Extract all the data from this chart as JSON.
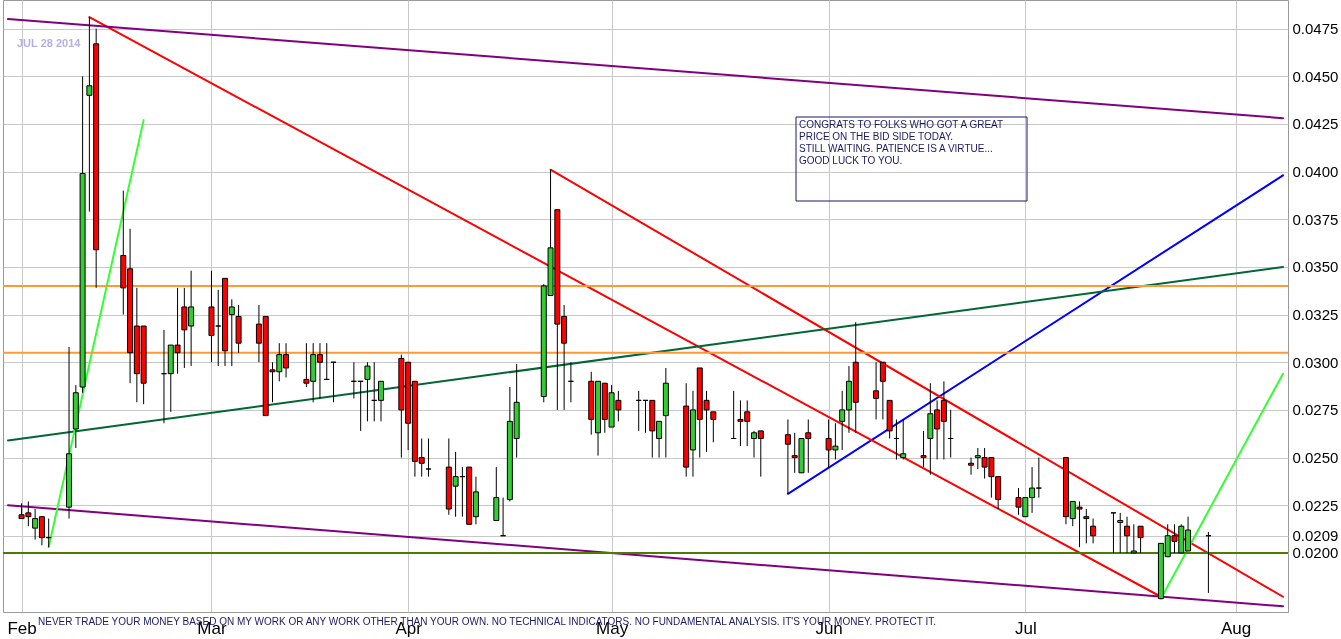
{
  "chart_data": {
    "type": "candlestick",
    "subtitle": "JUL 28 2014",
    "x": [
      "2014-02-03",
      "2014-02-04",
      "2014-02-05",
      "2014-02-06",
      "2014-02-07",
      "2014-02-10",
      "2014-02-11",
      "2014-02-12",
      "2014-02-13",
      "2014-02-14",
      "2014-02-18",
      "2014-02-19",
      "2014-02-20",
      "2014-02-21",
      "2014-02-24",
      "2014-02-25",
      "2014-02-26",
      "2014-02-27",
      "2014-02-28",
      "2014-03-03",
      "2014-03-04",
      "2014-03-05",
      "2014-03-06",
      "2014-03-07",
      "2014-03-10",
      "2014-03-11",
      "2014-03-12",
      "2014-03-13",
      "2014-03-14",
      "2014-03-17",
      "2014-03-18",
      "2014-03-19",
      "2014-03-20",
      "2014-03-21",
      "2014-03-24",
      "2014-03-25",
      "2014-03-26",
      "2014-03-27",
      "2014-03-28",
      "2014-03-31",
      "2014-04-01",
      "2014-04-02",
      "2014-04-03",
      "2014-04-04",
      "2014-04-07",
      "2014-04-08",
      "2014-04-09",
      "2014-04-10",
      "2014-04-11",
      "2014-04-14",
      "2014-04-15",
      "2014-04-16",
      "2014-04-17",
      "2014-04-21",
      "2014-04-22",
      "2014-04-23",
      "2014-04-24",
      "2014-04-25",
      "2014-04-28",
      "2014-04-29",
      "2014-04-30",
      "2014-05-01",
      "2014-05-02",
      "2014-05-05",
      "2014-05-06",
      "2014-05-07",
      "2014-05-08",
      "2014-05-09",
      "2014-05-12",
      "2014-05-13",
      "2014-05-14",
      "2014-05-15",
      "2014-05-16",
      "2014-05-19",
      "2014-05-20",
      "2014-05-21",
      "2014-05-22",
      "2014-05-23",
      "2014-05-27",
      "2014-05-28",
      "2014-05-29",
      "2014-05-30",
      "2014-06-02",
      "2014-06-03",
      "2014-06-04",
      "2014-06-05",
      "2014-06-06",
      "2014-06-09",
      "2014-06-10",
      "2014-06-11",
      "2014-06-12",
      "2014-06-13",
      "2014-06-16",
      "2014-06-17",
      "2014-06-18",
      "2014-06-19",
      "2014-06-20",
      "2014-06-23",
      "2014-06-24",
      "2014-06-25",
      "2014-06-26",
      "2014-06-27",
      "2014-06-30",
      "2014-07-01",
      "2014-07-02",
      "2014-07-03",
      "2014-07-07",
      "2014-07-08",
      "2014-07-09",
      "2014-07-10",
      "2014-07-11",
      "2014-07-14",
      "2014-07-15",
      "2014-07-16",
      "2014-07-17",
      "2014-07-18",
      "2014-07-21",
      "2014-07-22",
      "2014-07-23",
      "2014-07-24",
      "2014-07-25",
      "2014-07-28"
    ],
    "ohlc": [
      [
        0.022,
        0.0226,
        0.0218,
        0.0218
      ],
      [
        0.0221,
        0.0227,
        0.0214,
        0.0219
      ],
      [
        0.0213,
        0.0223,
        0.0207,
        0.0218
      ],
      [
        0.0219,
        0.0219,
        0.0204,
        0.0208
      ],
      [
        0.0208,
        0.0218,
        0.0203,
        0.0208
      ],
      [
        0.0224,
        0.0308,
        0.0218,
        0.0252
      ],
      [
        0.0265,
        0.0288,
        0.0255,
        0.0284
      ],
      [
        0.0287,
        0.045,
        0.0284,
        0.0399
      ],
      [
        0.044,
        0.0481,
        0.0379,
        0.0445
      ],
      [
        0.0467,
        0.0475,
        0.0339,
        0.0359
      ],
      [
        0.0356,
        0.039,
        0.0325,
        0.0339
      ],
      [
        0.0349,
        0.037,
        0.0289,
        0.0305
      ],
      [
        0.0319,
        0.0339,
        0.0279,
        0.0294
      ],
      [
        0.0319,
        0.0319,
        0.0278,
        0.0289
      ],
      [
        0.0294,
        0.0317,
        0.0268,
        0.0294
      ],
      [
        0.0294,
        0.0309,
        0.0274,
        0.0309
      ],
      [
        0.0309,
        0.0339,
        0.0294,
        0.0305
      ],
      [
        0.0329,
        0.0339,
        0.0297,
        0.0317
      ],
      [
        0.0319,
        0.0348,
        0.0298,
        0.0329
      ],
      [
        0.0329,
        0.0348,
        0.03,
        0.0314
      ],
      [
        0.0319,
        0.0338,
        0.0298,
        0.0319
      ],
      [
        0.0344,
        0.0344,
        0.0298,
        0.0306
      ],
      [
        0.0325,
        0.0333,
        0.0298,
        0.0329
      ],
      [
        0.0324,
        0.033,
        0.0305,
        0.031
      ],
      [
        0.032,
        0.033,
        0.03,
        0.031
      ],
      [
        0.0324,
        0.0324,
        0.0272,
        0.0272
      ],
      [
        0.0296,
        0.03,
        0.0279,
        0.0295
      ],
      [
        0.0295,
        0.031,
        0.029,
        0.0304
      ],
      [
        0.0304,
        0.031,
        0.0292,
        0.0297
      ],
      [
        0.0291,
        0.031,
        0.0287,
        0.0289
      ],
      [
        0.029,
        0.031,
        0.0279,
        0.0304
      ],
      [
        0.0304,
        0.031,
        0.0281,
        0.03
      ],
      [
        0.0291,
        0.031,
        0.0291,
        0.0291
      ],
      [
        0.03,
        0.03,
        0.0279,
        0.03
      ],
      [
        0.029,
        0.03,
        0.0281,
        0.029
      ],
      [
        0.029,
        0.029,
        0.0264,
        0.029
      ],
      [
        0.0291,
        0.03,
        0.0269,
        0.0298
      ],
      [
        0.028,
        0.03,
        0.0269,
        0.028
      ],
      [
        0.028,
        0.029,
        0.0269,
        0.029
      ],
      [
        0.0302,
        0.0304,
        0.025,
        0.0275
      ],
      [
        0.03,
        0.03,
        0.0254,
        0.0268
      ],
      [
        0.029,
        0.029,
        0.024,
        0.0248
      ],
      [
        0.025,
        0.026,
        0.024,
        0.0247
      ],
      [
        0.0244,
        0.026,
        0.024,
        0.0244
      ],
      [
        0.0245,
        0.026,
        0.022,
        0.0223
      ],
      [
        0.0235,
        0.0253,
        0.0219,
        0.024
      ],
      [
        0.024,
        0.0245,
        0.0219,
        0.024
      ],
      [
        0.0245,
        0.0245,
        0.0215,
        0.0215
      ],
      [
        0.0219,
        0.024,
        0.0215,
        0.0232
      ],
      [
        0.0217,
        0.0245,
        0.0217,
        0.0229
      ],
      [
        0.0209,
        0.0229,
        0.0209,
        0.0209
      ],
      [
        0.0228,
        0.0287,
        0.0227,
        0.0269
      ],
      [
        0.026,
        0.0299,
        0.025,
        0.0279
      ],
      [
        0.0282,
        0.0341,
        0.0279,
        0.034
      ],
      [
        0.0335,
        0.0401,
        0.0335,
        0.036
      ],
      [
        0.038,
        0.038,
        0.0275,
        0.032
      ],
      [
        0.0324,
        0.033,
        0.0275,
        0.031
      ],
      [
        0.029,
        0.03,
        0.0279,
        0.029
      ],
      [
        0.029,
        0.0295,
        0.0262,
        0.027
      ],
      [
        0.0263,
        0.029,
        0.0251,
        0.029
      ],
      [
        0.0289,
        0.0289,
        0.0263,
        0.027
      ],
      [
        0.0266,
        0.0288,
        0.0266,
        0.0284
      ],
      [
        0.028,
        0.0285,
        0.0269,
        0.0275
      ],
      [
        0.028,
        0.0285,
        0.0264,
        0.028
      ],
      [
        0.028,
        0.028,
        0.0263,
        0.028
      ],
      [
        0.028,
        0.028,
        0.025,
        0.0264
      ],
      [
        0.026,
        0.0269,
        0.025,
        0.0269
      ],
      [
        0.0272,
        0.0297,
        0.025,
        0.0289
      ],
      [
        0.0277,
        0.0289,
        0.024,
        0.0245
      ],
      [
        0.0254,
        0.0285,
        0.024,
        0.0275
      ],
      [
        0.0297,
        0.0297,
        0.025,
        0.027
      ],
      [
        0.028,
        0.0285,
        0.0253,
        0.0275
      ],
      [
        0.0274,
        0.0274,
        0.0258,
        0.027
      ],
      [
        0.026,
        0.0285,
        0.026,
        0.026
      ],
      [
        0.027,
        0.028,
        0.0256,
        0.0269
      ],
      [
        0.0274,
        0.028,
        0.0256,
        0.0269
      ],
      [
        0.026,
        0.0264,
        0.025,
        0.0263
      ],
      [
        0.0264,
        0.0264,
        0.024,
        0.026
      ],
      [
        0.0262,
        0.027,
        0.0231,
        0.0257
      ],
      [
        0.0251,
        0.0263,
        0.0242,
        0.025
      ],
      [
        0.0242,
        0.026,
        0.0242,
        0.026
      ],
      [
        0.0263,
        0.027,
        0.0242,
        0.026
      ],
      [
        0.026,
        0.027,
        0.0245,
        0.0254
      ],
      [
        0.0254,
        0.0268,
        0.0249,
        0.0256
      ],
      [
        0.0269,
        0.0285,
        0.0254,
        0.0275
      ],
      [
        0.0275,
        0.0298,
        0.0263,
        0.029
      ],
      [
        0.03,
        0.0321,
        0.0263,
        0.0279
      ],
      [
        0.0285,
        0.03,
        0.027,
        0.0281
      ],
      [
        0.03,
        0.03,
        0.027,
        0.029
      ],
      [
        0.028,
        0.028,
        0.026,
        0.0264
      ],
      [
        0.026,
        0.027,
        0.0249,
        0.026
      ],
      [
        0.025,
        0.027,
        0.0249,
        0.0252
      ],
      [
        0.0251,
        0.0264,
        0.0245,
        0.025
      ],
      [
        0.026,
        0.0289,
        0.0241,
        0.0273
      ],
      [
        0.0275,
        0.028,
        0.0249,
        0.0265
      ],
      [
        0.028,
        0.029,
        0.0249,
        0.0269
      ],
      [
        0.026,
        0.0275,
        0.025,
        0.026
      ],
      [
        0.0247,
        0.025,
        0.0241,
        0.0246
      ],
      [
        0.025,
        0.0255,
        0.0244,
        0.0251
      ],
      [
        0.025,
        0.0255,
        0.0239,
        0.0245
      ],
      [
        0.025,
        0.025,
        0.0229,
        0.024
      ],
      [
        0.024,
        0.024,
        0.0223,
        0.0228
      ],
      [
        0.0229,
        0.0234,
        0.022,
        0.0224
      ],
      [
        0.0219,
        0.0229,
        0.0219,
        0.0229
      ],
      [
        0.0229,
        0.0245,
        0.0221,
        0.0234
      ],
      [
        0.0234,
        0.025,
        0.0229,
        0.0234
      ],
      [
        0.025,
        0.025,
        0.0215,
        0.0219
      ],
      [
        0.0218,
        0.0227,
        0.0214,
        0.0227
      ],
      [
        0.0224,
        0.0227,
        0.0203,
        0.0223
      ],
      [
        0.0219,
        0.0223,
        0.0205,
        0.0218
      ],
      [
        0.0214,
        0.0218,
        0.0205,
        0.0209
      ],
      [
        0.0221,
        0.0221,
        0.02,
        0.0221
      ],
      [
        0.0216,
        0.0221,
        0.02,
        0.0217
      ],
      [
        0.0214,
        0.0219,
        0.02,
        0.0209
      ],
      [
        0.02,
        0.0215,
        0.02,
        0.0201
      ],
      [
        0.0214,
        0.0214,
        0.02,
        0.0208
      ],
      [
        0.0176,
        0.0205,
        0.0176,
        0.0205
      ],
      [
        0.0198,
        0.0215,
        0.0198,
        0.0209
      ],
      [
        0.0209,
        0.0215,
        0.02,
        0.0206
      ],
      [
        0.02,
        0.0215,
        0.02,
        0.0214
      ],
      [
        0.0201,
        0.0219,
        0.0201,
        0.0212
      ],
      [
        0.0209,
        0.0211,
        0.0179,
        0.0209
      ]
    ],
    "colors": [
      "#ff0000",
      "#ff0000",
      "#33cc33",
      "#ff0000",
      "#000000",
      "#33cc33",
      "#33cc33",
      "#33cc33",
      "#33cc33",
      "#ff0000",
      "#ff0000",
      "#ff0000",
      "#ff0000",
      "#ff0000",
      "#000000",
      "#33cc33",
      "#ff0000",
      "#ff0000",
      "#33cc33",
      "#ff0000",
      "#000000",
      "#ff0000",
      "#33cc33",
      "#ff0000",
      "#ff0000",
      "#ff0000",
      "#ff0000",
      "#33cc33",
      "#ff0000",
      "#ff0000",
      "#33cc33",
      "#ff0000",
      "#000000",
      "#000000",
      "#000000",
      "#000000",
      "#33cc33",
      "#000000",
      "#33cc33",
      "#ff0000",
      "#ff0000",
      "#ff0000",
      "#ff0000",
      "#000000",
      "#ff0000",
      "#33cc33",
      "#000000",
      "#ff0000",
      "#33cc33",
      "#33cc33",
      "#000000",
      "#33cc33",
      "#33cc33",
      "#33cc33",
      "#33cc33",
      "#ff0000",
      "#ff0000",
      "#000000",
      "#ff0000",
      "#33cc33",
      "#ff0000",
      "#33cc33",
      "#ff0000",
      "#000000",
      "#000000",
      "#ff0000",
      "#33cc33",
      "#33cc33",
      "#ff0000",
      "#33cc33",
      "#ff0000",
      "#ff0000",
      "#ff0000",
      "#000000",
      "#ff0000",
      "#ff0000",
      "#33cc33",
      "#ff0000",
      "#ff0000",
      "#ff0000",
      "#33cc33",
      "#ff0000",
      "#ff0000",
      "#33cc33",
      "#33cc33",
      "#33cc33",
      "#ff0000",
      "#ff0000",
      "#ff0000",
      "#ff0000",
      "#000000",
      "#33cc33",
      "#ff0000",
      "#33cc33",
      "#ff0000",
      "#ff0000",
      "#000000",
      "#ff0000",
      "#33cc33",
      "#ff0000",
      "#ff0000",
      "#ff0000",
      "#ff0000",
      "#33cc33",
      "#33cc33",
      "#000000",
      "#ff0000",
      "#33cc33",
      "#ff0000",
      "#ff0000",
      "#ff0000",
      "#000000",
      "#33cc33",
      "#ff0000",
      "#33cc33",
      "#ff0000",
      "#33cc33",
      "#33cc33",
      "#ff0000",
      "#33cc33",
      "#33cc33",
      "#000000"
    ],
    "series": [
      {
        "type": "line",
        "color": "#0000ff",
        "x": [
          "2014-05-27",
          "2014-08-08"
        ],
        "values": [
          0.0231,
          0.0398
        ]
      },
      {
        "type": "line",
        "color": "#ff0000",
        "x": [
          "2014-02-13",
          "2014-07-21"
        ],
        "values": [
          0.0481,
          0.0177
        ]
      },
      {
        "type": "line",
        "color": "#ff0000",
        "x": [
          "2014-04-22",
          "2014-08-08"
        ],
        "values": [
          0.0401,
          0.0177
        ]
      },
      {
        "type": "line",
        "color": "#800080",
        "x": [
          "2014-02-01",
          "2014-08-08"
        ],
        "values": [
          0.048,
          0.0428
        ]
      },
      {
        "type": "line",
        "color": "#800080",
        "x": [
          "2014-02-01",
          "2014-08-08"
        ],
        "values": [
          0.0225,
          0.0172
        ]
      },
      {
        "type": "line",
        "color": "#006633",
        "x": [
          "2014-02-01",
          "2014-08-08"
        ],
        "values": [
          0.0259,
          0.035
        ]
      },
      {
        "type": "line",
        "color": "#33ff33",
        "x": [
          "2014-02-07",
          "2014-02-21"
        ],
        "values": [
          0.0203,
          0.0427
        ]
      },
      {
        "type": "line",
        "color": "#33ff33",
        "x": [
          "2014-07-21",
          "2014-08-08"
        ],
        "values": [
          0.0176,
          0.0294
        ]
      }
    ],
    "ref_lines": [
      {
        "axis": "y",
        "value": 0.034,
        "color": "#ff9933"
      },
      {
        "axis": "y",
        "value": 0.0305,
        "color": "#ff9933"
      },
      {
        "axis": "y",
        "value": 0.02,
        "color": "#4d7a00"
      }
    ],
    "xlim": [
      "2014-02-01",
      "2014-08-08"
    ],
    "xticks": [
      {
        "value": "2014-02-03",
        "label": "Feb"
      },
      {
        "value": "2014-03-03",
        "label": "Mar"
      },
      {
        "value": "2014-04-01",
        "label": "Apr"
      },
      {
        "value": "2014-05-01",
        "label": "May"
      },
      {
        "value": "2014-06-02",
        "label": "Jun"
      },
      {
        "value": "2014-07-01",
        "label": "Jul"
      },
      {
        "value": "2014-08-01",
        "label": "Aug"
      }
    ],
    "ylim": [
      0.0169,
      0.049
    ],
    "yticks": [
      {
        "value": 0.02,
        "label": "0.0200"
      },
      {
        "value": 0.0209,
        "label": "0.0209"
      },
      {
        "value": 0.0225,
        "label": "0.0225"
      },
      {
        "value": 0.025,
        "label": "0.0250"
      },
      {
        "value": 0.0275,
        "label": "0.0275"
      },
      {
        "value": 0.03,
        "label": "0.0300"
      },
      {
        "value": 0.0325,
        "label": "0.0325"
      },
      {
        "value": 0.035,
        "label": "0.0350"
      },
      {
        "value": 0.0375,
        "label": "0.0375"
      },
      {
        "value": 0.04,
        "label": "0.0400"
      },
      {
        "value": 0.0425,
        "label": "0.0425"
      },
      {
        "value": 0.045,
        "label": "0.0450"
      },
      {
        "value": 0.0475,
        "label": "0.0475"
      }
    ],
    "grid": true,
    "annotations": [
      "CONGRATS TO FOLKS WHO GOT A GREAT\nPRICE ON THE BID SIDE TODAY.\n\nSTILL WAITING. PATIENCE IS A VIRTUE...\n\nGOOD LUCK TO YOU.",
      "NEVER TRADE YOUR MONEY BASED ON MY WORK OR ANY WORK OTHER THAN YOUR OWN. NO TECHNICAL INDICATORS. NO FUNDAMENTAL ANALYSIS. IT'S YOUR MONEY. PROTECT IT."
    ]
  }
}
